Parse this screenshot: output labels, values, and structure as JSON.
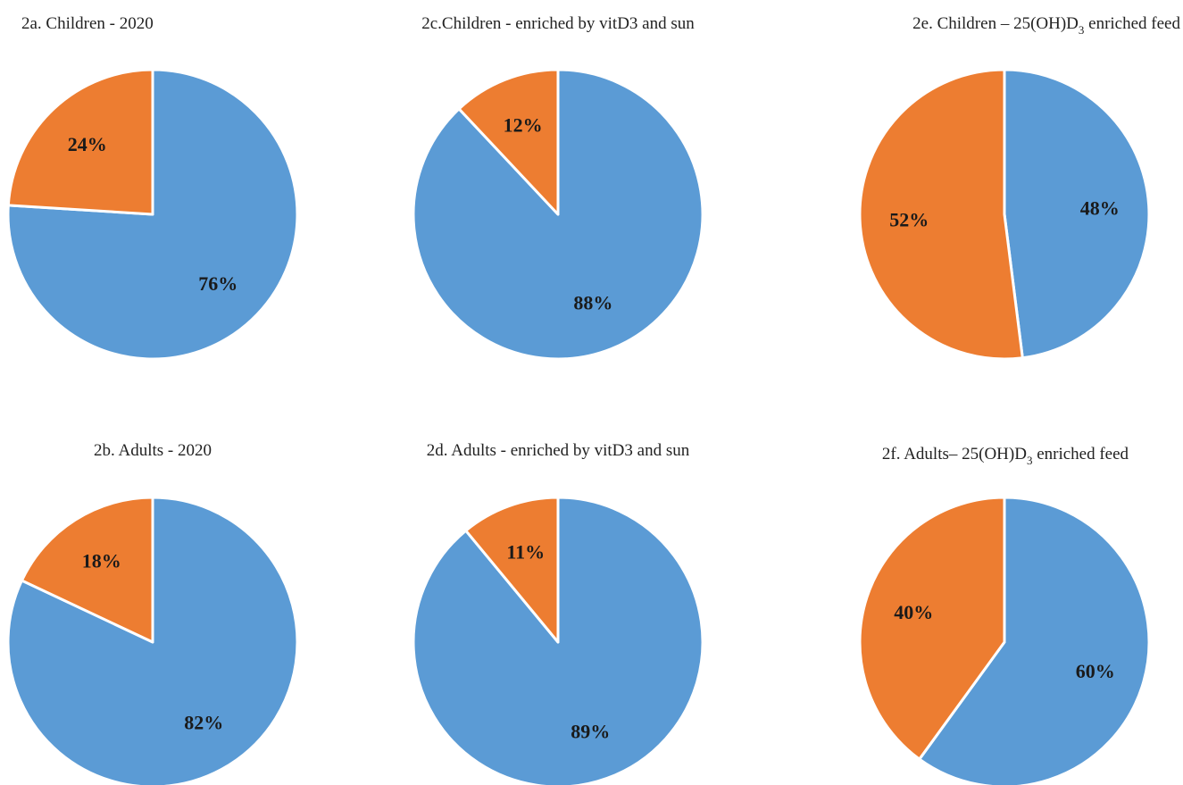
{
  "colors": {
    "blue_slice": "#5B9BD5",
    "orange_slice": "#ED7D31",
    "separator": "#ffffff"
  },
  "chart_data": [
    {
      "type": "pie",
      "title_main": "2a. Children - 2020",
      "title_sub": "",
      "title_tail": "",
      "slices": [
        {
          "value": 76,
          "label": "76%",
          "color": "#5B9BD5"
        },
        {
          "value": 24,
          "label": "24%",
          "color": "#ED7D31"
        }
      ]
    },
    {
      "type": "pie",
      "title_main": "2c.Children - enriched by vitD3 and sun",
      "title_sub": "",
      "title_tail": "",
      "slices": [
        {
          "value": 88,
          "label": "88%",
          "color": "#5B9BD5"
        },
        {
          "value": 12,
          "label": "12%",
          "color": "#ED7D31"
        }
      ]
    },
    {
      "type": "pie",
      "title_main": "2e. Children – 25(OH)D",
      "title_sub": "3",
      "title_tail": " enriched feed",
      "slices": [
        {
          "value": 48,
          "label": "48%",
          "color": "#5B9BD5"
        },
        {
          "value": 52,
          "label": "52%",
          "color": "#ED7D31"
        }
      ]
    },
    {
      "type": "pie",
      "title_main": "2b. Adults - 2020",
      "title_sub": "",
      "title_tail": "",
      "slices": [
        {
          "value": 82,
          "label": "82%",
          "color": "#5B9BD5"
        },
        {
          "value": 18,
          "label": "18%",
          "color": "#ED7D31"
        }
      ]
    },
    {
      "type": "pie",
      "title_main": "2d. Adults - enriched by vitD3 and sun",
      "title_sub": "",
      "title_tail": "",
      "slices": [
        {
          "value": 89,
          "label": "89%",
          "color": "#5B9BD5"
        },
        {
          "value": 11,
          "label": "11%",
          "color": "#ED7D31"
        }
      ]
    },
    {
      "type": "pie",
      "title_main": "2f. Adults– 25(OH)D",
      "title_sub": "3",
      "title_tail": " enriched feed",
      "slices": [
        {
          "value": 60,
          "label": "60%",
          "color": "#5B9BD5"
        },
        {
          "value": 40,
          "label": "40%",
          "color": "#ED7D31"
        }
      ]
    }
  ]
}
